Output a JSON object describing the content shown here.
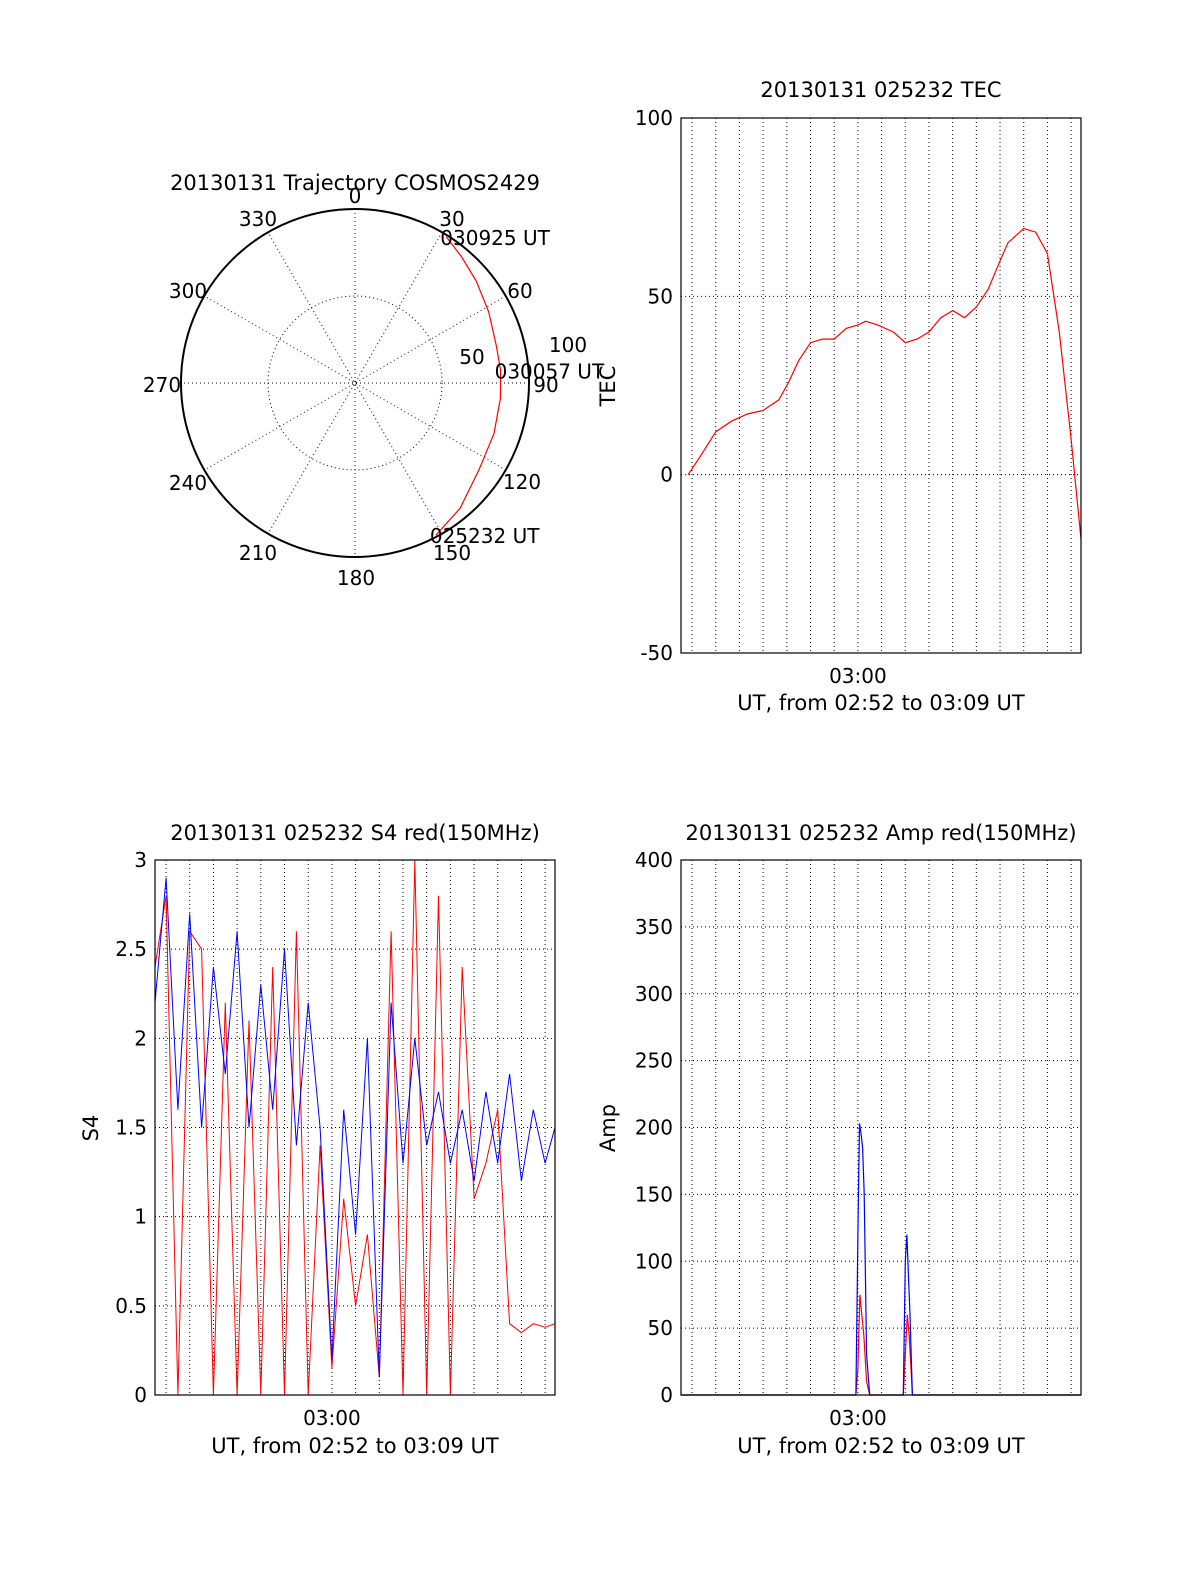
{
  "chart_data": [
    {
      "type": "polar",
      "title": "20130131 Trajectory COSMOS2429",
      "azimuth_labels": [
        "0",
        "30",
        "60",
        "90",
        "120",
        "150",
        "180",
        "210",
        "240",
        "270",
        "300",
        "330"
      ],
      "radial_labels": [
        "50",
        "100"
      ],
      "radial_max": 100,
      "colors": {
        "trajectory": "#ff0000"
      },
      "trajectory": [
        {
          "az": 152,
          "r": 99
        },
        {
          "az": 140,
          "r": 94
        },
        {
          "az": 125,
          "r": 87
        },
        {
          "az": 110,
          "r": 85
        },
        {
          "az": 96,
          "r": 84
        },
        {
          "az": 85,
          "r": 84
        },
        {
          "az": 75,
          "r": 84
        },
        {
          "az": 62,
          "r": 87
        },
        {
          "az": 50,
          "r": 91
        },
        {
          "az": 40,
          "r": 95
        },
        {
          "az": 32,
          "r": 99
        }
      ],
      "annotations": [
        {
          "text": "030925 UT",
          "az": 32,
          "r": 99
        },
        {
          "text": "030057 UT",
          "az": 85,
          "r": 84
        },
        {
          "text": "025232 UT",
          "az": 152,
          "r": 99
        }
      ]
    },
    {
      "type": "line",
      "title": "20130131 025232 TEC",
      "xlabel": "UT, from 02:52 to 03:09 UT",
      "ylabel": "TEC",
      "xlim": [
        "02:52:32",
        "03:09:25"
      ],
      "ylim": [
        -50,
        100
      ],
      "yticks": [
        "100",
        "50",
        "0",
        "-50"
      ],
      "xticks": [
        {
          "label": "03:00",
          "x": "03:00:00"
        }
      ],
      "grid": true,
      "colors": {
        "tec": "#ff0000"
      },
      "series": [
        {
          "key": "tec",
          "x": [
            "02:52:50",
            "02:53:20",
            "02:54:00",
            "02:54:40",
            "02:55:20",
            "02:56:00",
            "02:56:40",
            "02:57:05",
            "02:57:30",
            "02:58:00",
            "02:58:30",
            "02:59:00",
            "02:59:30",
            "03:00:00",
            "03:00:20",
            "03:00:50",
            "03:01:30",
            "03:02:00",
            "03:02:30",
            "03:03:00",
            "03:03:30",
            "03:04:00",
            "03:04:30",
            "03:05:00",
            "03:05:30",
            "03:06:00",
            "03:06:20",
            "03:06:40",
            "03:07:00",
            "03:07:30",
            "03:08:00",
            "03:08:30",
            "03:09:00",
            "03:09:25"
          ],
          "values": [
            0,
            5,
            12,
            15,
            17,
            18,
            21,
            26,
            32,
            37,
            38,
            38,
            41,
            42,
            43,
            42,
            40,
            37,
            38,
            40,
            44,
            46,
            44,
            47,
            52,
            60,
            65,
            67,
            69,
            68,
            62,
            40,
            10,
            -18
          ]
        }
      ]
    },
    {
      "type": "line",
      "title": "20130131 025232 S4 red(150MHz)",
      "xlabel": "UT, from 02:52 to 03:09 UT",
      "ylabel": "S4",
      "xlim": [
        "02:52:32",
        "03:09:25"
      ],
      "ylim": [
        0,
        3
      ],
      "yticks": [
        "3",
        "2.5",
        "2",
        "1.5",
        "1",
        "0.5",
        "0"
      ],
      "xticks": [
        {
          "label": "03:00",
          "x": "03:00:00"
        }
      ],
      "grid": true,
      "colors": {
        "red": "#ff0000",
        "blue": "#0000ff"
      },
      "series": [
        {
          "key": "red",
          "x": [
            "02:52:32",
            "02:53:00",
            "02:53:30",
            "02:54:00",
            "02:54:30",
            "02:55:00",
            "02:55:30",
            "02:56:00",
            "02:56:30",
            "02:57:00",
            "02:57:30",
            "02:58:00",
            "02:58:30",
            "02:59:00",
            "02:59:30",
            "03:00:00",
            "03:00:30",
            "03:01:00",
            "03:01:30",
            "03:02:00",
            "03:02:30",
            "03:03:00",
            "03:03:30",
            "03:04:00",
            "03:04:30",
            "03:05:00",
            "03:05:30",
            "03:06:00",
            "03:06:30",
            "03:07:00",
            "03:07:30",
            "03:08:00",
            "03:08:30",
            "03:09:00",
            "03:09:25"
          ],
          "values": [
            2.4,
            2.8,
            0,
            2.6,
            2.5,
            0,
            2.2,
            0,
            2.1,
            0,
            2.4,
            0,
            2.6,
            0,
            1.4,
            0.15,
            1.1,
            0.5,
            0.9,
            0.1,
            2.6,
            0,
            3.0,
            0,
            2.8,
            0,
            2.4,
            1.1,
            1.3,
            1.6,
            0.4,
            0.35,
            0.4,
            0.38,
            0.4
          ]
        },
        {
          "key": "blue",
          "x": [
            "02:52:32",
            "02:53:00",
            "02:53:30",
            "02:54:00",
            "02:54:30",
            "02:55:00",
            "02:55:30",
            "02:56:00",
            "02:56:30",
            "02:57:00",
            "02:57:30",
            "02:58:00",
            "02:58:30",
            "02:59:00",
            "02:59:30",
            "03:00:00",
            "03:00:30",
            "03:01:00",
            "03:01:30",
            "03:02:00",
            "03:02:30",
            "03:03:00",
            "03:03:30",
            "03:04:00",
            "03:04:30",
            "03:05:00",
            "03:05:30",
            "03:06:00",
            "03:06:30",
            "03:07:00",
            "03:07:30",
            "03:08:00",
            "03:08:30",
            "03:09:00",
            "03:09:25"
          ],
          "values": [
            2.2,
            2.9,
            1.6,
            2.7,
            1.5,
            2.4,
            1.8,
            2.6,
            1.5,
            2.3,
            1.6,
            2.5,
            1.4,
            2.2,
            1.5,
            0.2,
            1.6,
            0.9,
            2.0,
            0.1,
            2.2,
            1.3,
            2.0,
            1.4,
            1.7,
            1.3,
            1.6,
            1.2,
            1.7,
            1.3,
            1.8,
            1.2,
            1.6,
            1.3,
            1.5
          ]
        }
      ]
    },
    {
      "type": "line",
      "title": "20130131 025232 Amp red(150MHz)",
      "xlabel": "UT, from 02:52 to 03:09 UT",
      "ylabel": "Amp",
      "xlim": [
        "02:52:32",
        "03:09:25"
      ],
      "ylim": [
        0,
        400
      ],
      "yticks": [
        "400",
        "350",
        "300",
        "250",
        "200",
        "150",
        "100",
        "50",
        "0"
      ],
      "xticks": [
        {
          "label": "03:00",
          "x": "03:00:00"
        }
      ],
      "grid": true,
      "colors": {
        "red": "#ff0000",
        "blue": "#0000ff"
      },
      "series": [
        {
          "key": "red",
          "x": [
            "02:52:32",
            "02:59:55",
            "03:00:00",
            "03:00:05",
            "03:00:10",
            "03:00:15",
            "03:00:22",
            "03:00:30",
            "03:01:55",
            "03:02:00",
            "03:02:05",
            "03:02:10",
            "03:02:18",
            "03:09:25"
          ],
          "values": [
            0,
            0,
            20,
            75,
            60,
            45,
            10,
            0,
            0,
            30,
            60,
            45,
            0,
            0
          ]
        },
        {
          "key": "blue",
          "x": [
            "02:52:32",
            "02:59:55",
            "03:00:00",
            "03:00:04",
            "03:00:08",
            "03:00:12",
            "03:00:16",
            "03:00:22",
            "03:00:30",
            "03:01:55",
            "03:02:00",
            "03:02:04",
            "03:02:08",
            "03:02:12",
            "03:02:18",
            "03:09:25"
          ],
          "values": [
            0,
            0,
            120,
            203,
            195,
            185,
            150,
            30,
            0,
            0,
            100,
            120,
            90,
            60,
            0,
            0
          ]
        }
      ]
    }
  ]
}
